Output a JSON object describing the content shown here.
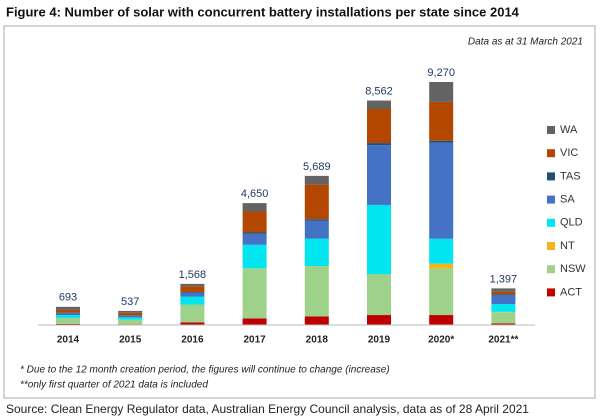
{
  "chart_data": {
    "type": "stacked_bar",
    "title": "Figure 4: Number of solar with concurrent battery installations per state since 2014",
    "subtitle": "Data as at 31 March 2021",
    "categories": [
      "2014",
      "2015",
      "2016",
      "2017",
      "2018",
      "2019",
      "2020*",
      "2021**"
    ],
    "totals": [
      693,
      537,
      1568,
      4650,
      5689,
      8562,
      9270,
      1397
    ],
    "totals_labels": [
      "693",
      "537",
      "1,568",
      "4,650",
      "5,689",
      "8,562",
      "9,270",
      "1,397"
    ],
    "series": [
      {
        "name": "ACT",
        "color": "#c00000",
        "values": [
          40,
          30,
          100,
          250,
          330,
          380,
          380,
          60
        ]
      },
      {
        "name": "NSW",
        "color": "#9ed28a",
        "values": [
          230,
          170,
          680,
          1900,
          1900,
          1530,
          1780,
          430
        ]
      },
      {
        "name": "NT",
        "color": "#f2b61c",
        "values": [
          0,
          0,
          0,
          10,
          15,
          20,
          180,
          10
        ]
      },
      {
        "name": "QLD",
        "color": "#00e5f0",
        "values": [
          110,
          90,
          300,
          900,
          1050,
          2650,
          950,
          300
        ]
      },
      {
        "name": "SA",
        "color": "#4472c4",
        "values": [
          80,
          70,
          150,
          420,
          680,
          2280,
          3660,
          330
        ]
      },
      {
        "name": "TAS",
        "color": "#1f4e79",
        "values": [
          5,
          5,
          30,
          50,
          60,
          80,
          80,
          40
        ]
      },
      {
        "name": "VIC",
        "color": "#b34700",
        "values": [
          110,
          100,
          220,
          800,
          1320,
          1300,
          1480,
          100
        ]
      },
      {
        "name": "WA",
        "color": "#636363",
        "values": [
          118,
          72,
          88,
          320,
          334,
          322,
          760,
          127
        ]
      }
    ],
    "legend": "right",
    "footnotes": [
      "* Due to the 12 month creation period, the figures will continue to change (increase)",
      "**only first quarter of 2021 data is included"
    ],
    "source": "Source: Clean Energy Regulator data, Australian Energy Council analysis, data as of 28 April 2021"
  }
}
